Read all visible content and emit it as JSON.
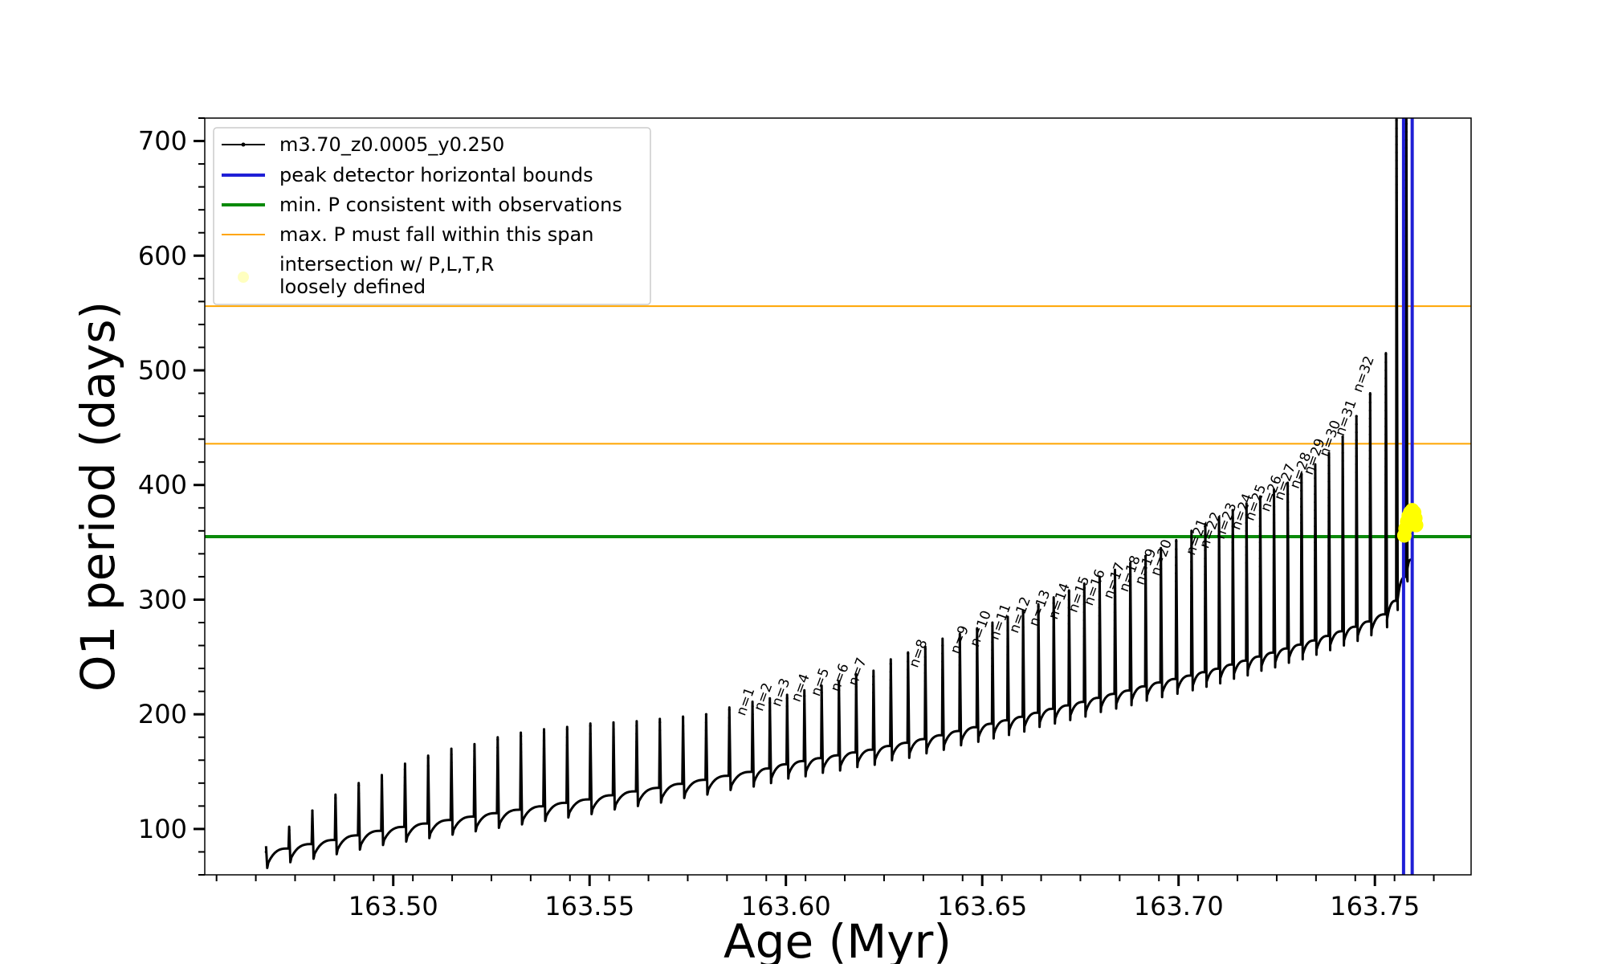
{
  "chart_data": {
    "type": "line",
    "xlabel": "Age (Myr)",
    "ylabel": "O1 period (days)",
    "xlim": [
      163.452,
      163.7745
    ],
    "ylim": [
      60,
      720
    ],
    "x_ticks": [
      "163.50",
      "163.55",
      "163.60",
      "163.65",
      "163.70",
      "163.75"
    ],
    "x_tick_values": [
      163.5,
      163.55,
      163.6,
      163.65,
      163.7,
      163.75
    ],
    "y_ticks": [
      "100",
      "200",
      "300",
      "400",
      "500",
      "600",
      "700"
    ],
    "y_tick_values": [
      100,
      200,
      300,
      400,
      500,
      600,
      700
    ],
    "grid": false,
    "legend_position": "upper-left",
    "legend": [
      {
        "label": "m3.70_z0.0005_y0.250",
        "color": "#000000",
        "kind": "line-marker"
      },
      {
        "label": "peak detector horizontal bounds",
        "color": "#1f1fd6",
        "kind": "line"
      },
      {
        "label": "min. P consistent with observations",
        "color": "#0a8a0a",
        "kind": "line"
      },
      {
        "label": "max. P must fall within this span",
        "color": "#ffa500",
        "kind": "line"
      },
      {
        "label": "intersection w/ P,L,T,R",
        "label2": "loosely defined",
        "color": "#ffff00",
        "kind": "marker"
      }
    ],
    "series": [
      {
        "name": "m3.70_z0.0005_y0.250",
        "color": "#000000",
        "pulse_ages": [
          163.4676,
          163.4735,
          163.4794,
          163.4853,
          163.4912,
          163.4971,
          163.503,
          163.5089,
          163.5148,
          163.5207,
          163.5266,
          163.5325,
          163.5384,
          163.5443,
          163.5502,
          163.5561,
          163.562,
          163.5679,
          163.5738,
          163.5797,
          163.5856,
          163.5915,
          163.5959,
          163.6003,
          163.6047,
          163.6091,
          163.6135,
          163.6179,
          163.6223,
          163.6267,
          163.6311,
          163.6355,
          163.6399,
          163.6443,
          163.6487,
          163.6526,
          163.6565,
          163.6604,
          163.6643,
          163.6682,
          163.6721,
          163.676,
          163.6799,
          163.6838,
          163.6877,
          163.6916,
          163.6955,
          163.6994,
          163.7033,
          163.7068,
          163.7103,
          163.7138,
          163.7173,
          163.7208,
          163.7243,
          163.7278,
          163.7313,
          163.7348,
          163.7383,
          163.7418,
          163.7453,
          163.7488,
          163.7528,
          163.7555,
          163.758
        ],
        "baseline_periods": [
          80,
          85,
          88,
          92,
          96,
          100,
          103,
          106,
          109,
          112,
          115,
          118,
          121,
          124,
          127,
          131,
          134,
          137,
          141,
          144,
          148,
          151,
          154,
          158,
          160,
          163,
          165,
          168,
          170,
          174,
          176,
          180,
          183,
          187,
          190,
          193,
          196,
          199,
          203,
          206,
          209,
          212,
          216,
          219,
          222,
          226,
          229,
          232,
          235,
          238,
          241,
          245,
          248,
          252,
          255,
          259,
          262,
          266,
          270,
          274,
          278,
          283,
          290,
          305,
          330
        ],
        "peak_periods": [
          85,
          102,
          116,
          130,
          140,
          147,
          157,
          164,
          170,
          174,
          180,
          184,
          187,
          189,
          192,
          193,
          194,
          196,
          198,
          200,
          206,
          211,
          214,
          217,
          221,
          225,
          229,
          235,
          238,
          248,
          254,
          259,
          266,
          270,
          275,
          280,
          285,
          290,
          296,
          302,
          308,
          314,
          320,
          326,
          332,
          338,
          345,
          352,
          360,
          366,
          372,
          378,
          384,
          390,
          396,
          402,
          410,
          418,
          428,
          442,
          460,
          480,
          515,
          740,
          740
        ]
      }
    ],
    "pulse_labels": [
      {
        "text": "n=1",
        "x": 163.5895,
        "y": 198
      },
      {
        "text": "n=2",
        "x": 163.594,
        "y": 202
      },
      {
        "text": "n=3",
        "x": 163.5985,
        "y": 206
      },
      {
        "text": "n=4",
        "x": 163.6035,
        "y": 210
      },
      {
        "text": "n=5",
        "x": 163.6085,
        "y": 215
      },
      {
        "text": "n=6",
        "x": 163.6135,
        "y": 219
      },
      {
        "text": "n=7",
        "x": 163.618,
        "y": 224
      },
      {
        "text": "n=8",
        "x": 163.6335,
        "y": 240
      },
      {
        "text": "n=9",
        "x": 163.644,
        "y": 252
      },
      {
        "text": "n=10",
        "x": 163.649,
        "y": 258
      },
      {
        "text": "n=11",
        "x": 163.654,
        "y": 264
      },
      {
        "text": "n=12",
        "x": 163.659,
        "y": 270
      },
      {
        "text": "n=13",
        "x": 163.664,
        "y": 276
      },
      {
        "text": "n=14",
        "x": 163.669,
        "y": 282
      },
      {
        "text": "n=15",
        "x": 163.674,
        "y": 288
      },
      {
        "text": "n=16",
        "x": 163.678,
        "y": 294
      },
      {
        "text": "n=17",
        "x": 163.683,
        "y": 300
      },
      {
        "text": "n=18",
        "x": 163.687,
        "y": 306
      },
      {
        "text": "n=19",
        "x": 163.691,
        "y": 312
      },
      {
        "text": "n=20",
        "x": 163.695,
        "y": 320
      },
      {
        "text": "n=21",
        "x": 163.704,
        "y": 338
      },
      {
        "text": "n=22",
        "x": 163.7075,
        "y": 344
      },
      {
        "text": "n=23",
        "x": 163.7115,
        "y": 352
      },
      {
        "text": "n=24",
        "x": 163.7155,
        "y": 360
      },
      {
        "text": "n=25",
        "x": 163.719,
        "y": 368
      },
      {
        "text": "n=26",
        "x": 163.723,
        "y": 376
      },
      {
        "text": "n=27",
        "x": 163.7265,
        "y": 386
      },
      {
        "text": "n=28",
        "x": 163.7305,
        "y": 396
      },
      {
        "text": "n=29",
        "x": 163.734,
        "y": 408
      },
      {
        "text": "n=30",
        "x": 163.738,
        "y": 424
      },
      {
        "text": "n=31",
        "x": 163.742,
        "y": 442
      },
      {
        "text": "n=32",
        "x": 163.7465,
        "y": 480
      }
    ],
    "horizontal_lines": [
      {
        "y": 355,
        "color": "#0a8a0a",
        "label": "min. P consistent with observations"
      },
      {
        "y": 436,
        "color": "#ffa500",
        "label": "max. P must fall within this span"
      },
      {
        "y": 556,
        "color": "#ffa500",
        "label": "max. P must fall within this span"
      }
    ],
    "vertical_lines": [
      {
        "x": 163.7573,
        "color": "#1f1fd6"
      },
      {
        "x": 163.7595,
        "color": "#1f1fd6"
      }
    ],
    "intersection_points": [
      {
        "x": 163.7575,
        "y": 356
      },
      {
        "x": 163.7578,
        "y": 362
      },
      {
        "x": 163.7582,
        "y": 368
      },
      {
        "x": 163.7586,
        "y": 373
      },
      {
        "x": 163.759,
        "y": 376
      },
      {
        "x": 163.7595,
        "y": 378
      },
      {
        "x": 163.76,
        "y": 376
      },
      {
        "x": 163.7603,
        "y": 371
      },
      {
        "x": 163.7605,
        "y": 365
      }
    ]
  }
}
